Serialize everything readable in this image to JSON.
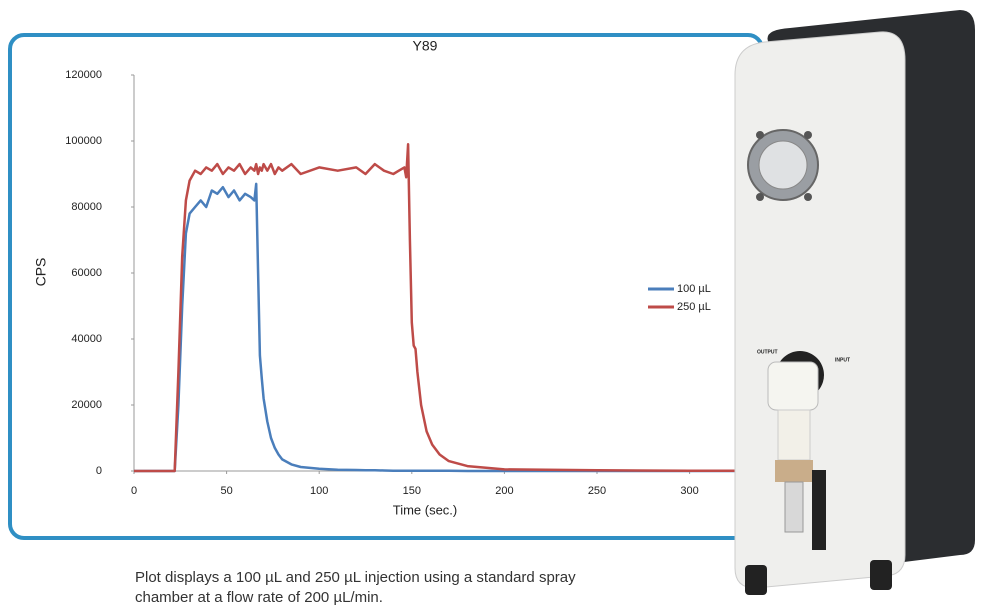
{
  "chart_data": {
    "type": "line",
    "title": "Y89",
    "xlabel": "Time (sec.)",
    "ylabel": "CPS",
    "x": [
      0,
      10,
      20,
      22,
      24,
      26,
      28,
      30,
      33,
      36,
      39,
      42,
      45,
      48,
      51,
      54,
      57,
      60,
      63,
      65,
      66,
      67,
      68,
      69,
      70,
      72,
      74,
      76,
      78,
      80,
      85,
      90,
      100,
      110,
      120,
      125,
      130,
      135,
      140,
      143,
      146,
      147,
      148,
      149,
      150,
      151,
      152,
      153,
      155,
      158,
      161,
      165,
      170,
      180,
      200,
      250,
      300,
      350
    ],
    "series": [
      {
        "name": "100 µL",
        "color": "#4a7ebb",
        "values": [
          0,
          0,
          0,
          0,
          20000,
          50000,
          72000,
          78000,
          80000,
          82000,
          80000,
          85000,
          84000,
          86000,
          83000,
          85000,
          82000,
          84000,
          83000,
          82000,
          87000,
          60000,
          35000,
          28000,
          22000,
          15000,
          10000,
          7000,
          5000,
          3500,
          2000,
          1200,
          700,
          400,
          300,
          200,
          200,
          150,
          100,
          100,
          100,
          100,
          100,
          100,
          100,
          100,
          100,
          100,
          50,
          50,
          50,
          50,
          50,
          0,
          0,
          0,
          0,
          0
        ]
      },
      {
        "name": "250 µL",
        "color": "#be4b48",
        "values": [
          0,
          0,
          0,
          0,
          30000,
          65000,
          82000,
          88000,
          91000,
          90000,
          92000,
          91000,
          93000,
          90000,
          92000,
          91000,
          93000,
          90000,
          92000,
          91000,
          93000,
          90000,
          92000,
          91000,
          93000,
          91000,
          93000,
          90000,
          92000,
          91000,
          93000,
          90000,
          92000,
          91000,
          92000,
          90000,
          93000,
          91000,
          90000,
          91000,
          92000,
          89000,
          99000,
          70000,
          45000,
          38000,
          37000,
          30000,
          20000,
          12000,
          8000,
          5000,
          3000,
          1500,
          500,
          200,
          100,
          100
        ]
      }
    ],
    "xlim": [
      0,
      350
    ],
    "xticks": [
      0,
      50,
      100,
      150,
      200,
      250,
      300
    ],
    "ylim": [
      0,
      120000
    ],
    "yticks": [
      0,
      20000,
      40000,
      60000,
      80000,
      100000,
      120000
    ],
    "legend": "right",
    "caption": [
      "Plot displays a 100 µL and 250 µL injection using a standard spray",
      "chamber at a flow rate of 200 µL/min."
    ],
    "device_labels": [
      "OUTPUT",
      "INPUT"
    ]
  }
}
